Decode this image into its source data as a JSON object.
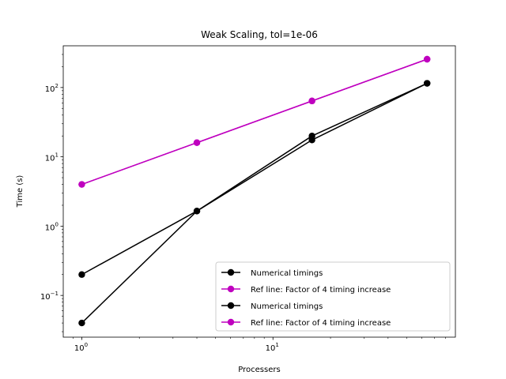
{
  "chart_data": {
    "type": "line",
    "title": "Weak Scaling, tol=1e-06",
    "xlabel": "Processers",
    "ylabel": "Time (s)",
    "xscale": "log",
    "yscale": "log",
    "xlim": [
      0.8,
      90
    ],
    "ylim": [
      0.025,
      400
    ],
    "x_ticks": [
      {
        "value": 1,
        "base": "10",
        "exp": "0"
      },
      {
        "value": 10,
        "base": "10",
        "exp": "1"
      }
    ],
    "y_ticks": [
      {
        "value": 0.1,
        "base": "10",
        "exp": "−1"
      },
      {
        "value": 1,
        "base": "10",
        "exp": "0"
      },
      {
        "value": 10,
        "base": "10",
        "exp": "1"
      },
      {
        "value": 100,
        "base": "10",
        "exp": "2"
      }
    ],
    "grid": false,
    "legend_position": "lower-right",
    "series": [
      {
        "name": "Numerical timings",
        "color": "#000000",
        "x": [
          1,
          4,
          16,
          64
        ],
        "y": [
          0.2,
          1.65,
          20,
          115
        ]
      },
      {
        "name": "Ref line: Factor of 4 timing increase",
        "color": "#bf00bf",
        "x": [
          1,
          4,
          16,
          64
        ],
        "y": [
          4,
          16,
          64,
          256
        ]
      },
      {
        "name": "Numerical timings",
        "color": "#000000",
        "x": [
          1,
          4,
          16,
          64
        ],
        "y": [
          0.04,
          1.65,
          17.5,
          115
        ]
      },
      {
        "name": "Ref line: Factor of 4 timing increase",
        "color": "#bf00bf",
        "x": [
          1,
          4,
          16,
          64
        ],
        "y": [
          4,
          16,
          64,
          256
        ]
      }
    ]
  }
}
